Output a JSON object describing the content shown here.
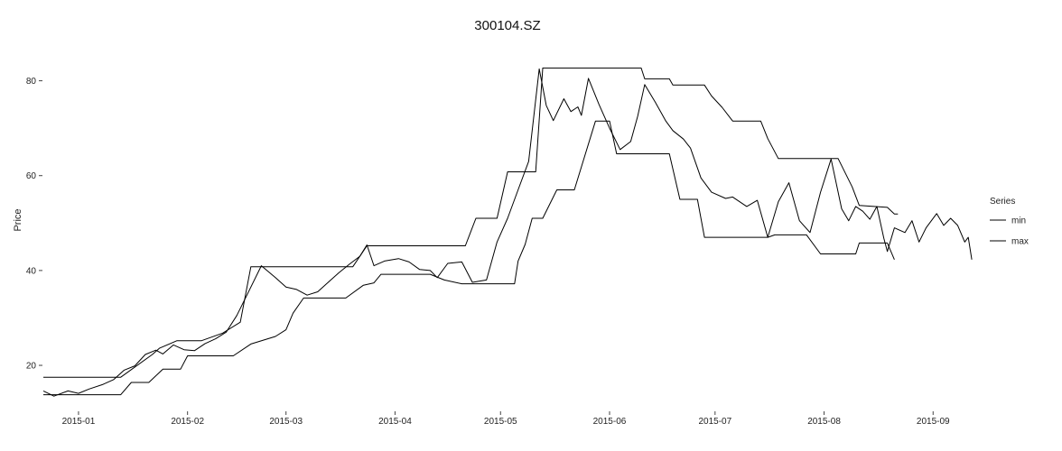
{
  "chart_data": {
    "type": "line",
    "title": "300104.SZ",
    "xlabel": "",
    "ylabel": "Price",
    "xlim": [
      "2014-12-22",
      "2015-09-13"
    ],
    "ylim": [
      10.5,
      86
    ],
    "x_tick_labels": [
      "2015-01",
      "2015-02",
      "2015-03",
      "2015-04",
      "2015-05",
      "2015-06",
      "2015-07",
      "2015-08",
      "2015-09"
    ],
    "y_ticks": [
      20,
      40,
      60,
      80
    ],
    "grid": false,
    "legend": {
      "title": "Series",
      "position": "right"
    },
    "series": [
      {
        "name": "min",
        "color": "#000000",
        "points": [
          [
            "2014-12-22",
            17.5
          ],
          [
            "2015-01-13",
            17.5
          ],
          [
            "2015-01-22",
            22.3
          ],
          [
            "2015-01-24",
            23.6
          ],
          [
            "2015-01-29",
            25.2
          ],
          [
            "2015-02-05",
            25.2
          ],
          [
            "2015-02-11",
            26.8
          ],
          [
            "2015-02-16",
            29.1
          ],
          [
            "2015-02-19",
            40.8
          ],
          [
            "2015-03-20",
            40.8
          ],
          [
            "2015-03-24",
            45.2
          ],
          [
            "2015-04-21",
            45.2
          ],
          [
            "2015-04-24",
            51.0
          ],
          [
            "2015-04-30",
            51.0
          ],
          [
            "2015-05-03",
            60.8
          ],
          [
            "2015-05-11",
            60.8
          ],
          [
            "2015-05-13",
            82.7
          ],
          [
            "2015-06-10",
            82.7
          ],
          [
            "2015-06-11",
            80.4
          ],
          [
            "2015-06-18",
            80.4
          ],
          [
            "2015-06-19",
            79.1
          ],
          [
            "2015-06-28",
            79.1
          ],
          [
            "2015-06-30",
            76.8
          ],
          [
            "2015-07-03",
            74.4
          ],
          [
            "2015-07-06",
            71.5
          ],
          [
            "2015-07-14",
            71.5
          ],
          [
            "2015-07-16",
            67.8
          ],
          [
            "2015-07-19",
            63.6
          ],
          [
            "2015-08-05",
            63.6
          ],
          [
            "2015-08-09",
            57.6
          ],
          [
            "2015-08-11",
            53.7
          ],
          [
            "2015-08-19",
            53.3
          ],
          [
            "2015-08-21",
            51.9
          ],
          [
            "2015-08-22",
            51.9
          ]
        ]
      },
      {
        "name": "max",
        "color": "#000000",
        "points": [
          [
            "2014-12-22",
            13.8
          ],
          [
            "2015-01-13",
            13.8
          ],
          [
            "2015-01-16",
            16.4
          ],
          [
            "2015-01-21",
            16.4
          ],
          [
            "2015-01-25",
            19.2
          ],
          [
            "2015-01-30",
            19.2
          ],
          [
            "2015-02-01",
            22.0
          ],
          [
            "2015-02-14",
            22.0
          ],
          [
            "2015-02-19",
            24.5
          ],
          [
            "2015-02-26",
            26.1
          ],
          [
            "2015-03-01",
            27.5
          ],
          [
            "2015-03-03",
            31.0
          ],
          [
            "2015-03-06",
            34.2
          ],
          [
            "2015-03-18",
            34.2
          ],
          [
            "2015-03-23",
            36.9
          ],
          [
            "2015-03-26",
            37.4
          ],
          [
            "2015-03-28",
            39.2
          ],
          [
            "2015-04-11",
            39.2
          ],
          [
            "2015-04-15",
            38.0
          ],
          [
            "2015-04-20",
            37.2
          ],
          [
            "2015-05-05",
            37.2
          ],
          [
            "2015-05-06",
            42.0
          ],
          [
            "2015-05-08",
            45.5
          ],
          [
            "2015-05-10",
            51.0
          ],
          [
            "2015-05-13",
            51.0
          ],
          [
            "2015-05-17",
            57.0
          ],
          [
            "2015-05-22",
            57.0
          ],
          [
            "2015-05-28",
            71.5
          ],
          [
            "2015-06-01",
            71.5
          ],
          [
            "2015-06-03",
            64.6
          ],
          [
            "2015-06-18",
            64.6
          ],
          [
            "2015-06-21",
            55.0
          ],
          [
            "2015-06-26",
            55.0
          ],
          [
            "2015-06-28",
            47.0
          ],
          [
            "2015-07-16",
            47.0
          ],
          [
            "2015-07-18",
            47.5
          ],
          [
            "2015-07-27",
            47.5
          ],
          [
            "2015-07-31",
            43.5
          ],
          [
            "2015-08-10",
            43.5
          ],
          [
            "2015-08-11",
            45.8
          ],
          [
            "2015-08-19",
            45.8
          ],
          [
            "2015-08-21",
            42.3
          ]
        ]
      },
      {
        "name": "",
        "color": "#000000",
        "points": [
          [
            "2014-12-22",
            14.6
          ],
          [
            "2014-12-25",
            13.5
          ],
          [
            "2014-12-29",
            14.6
          ],
          [
            "2015-01-01",
            14.1
          ],
          [
            "2015-01-04",
            15.0
          ],
          [
            "2015-01-08",
            16.0
          ],
          [
            "2015-01-11",
            17.0
          ],
          [
            "2015-01-14",
            19.0
          ],
          [
            "2015-01-17",
            19.9
          ],
          [
            "2015-01-20",
            22.3
          ],
          [
            "2015-01-23",
            23.2
          ],
          [
            "2015-01-25",
            22.4
          ],
          [
            "2015-01-28",
            24.3
          ],
          [
            "2015-01-31",
            23.3
          ],
          [
            "2015-02-03",
            23.1
          ],
          [
            "2015-02-06",
            24.6
          ],
          [
            "2015-02-09",
            25.6
          ],
          [
            "2015-02-12",
            27.0
          ],
          [
            "2015-02-15",
            30.5
          ],
          [
            "2015-02-18",
            35.0
          ],
          [
            "2015-02-22",
            41.0
          ],
          [
            "2015-02-26",
            38.5
          ],
          [
            "2015-03-01",
            36.5
          ],
          [
            "2015-03-04",
            36.0
          ],
          [
            "2015-03-07",
            34.8
          ],
          [
            "2015-03-10",
            35.5
          ],
          [
            "2015-03-13",
            37.5
          ],
          [
            "2015-03-16",
            39.5
          ],
          [
            "2015-03-19",
            41.3
          ],
          [
            "2015-03-22",
            43.0
          ],
          [
            "2015-03-24",
            45.4
          ],
          [
            "2015-03-26",
            41.0
          ],
          [
            "2015-03-29",
            42.0
          ],
          [
            "2015-04-02",
            42.5
          ],
          [
            "2015-04-05",
            41.8
          ],
          [
            "2015-04-08",
            40.2
          ],
          [
            "2015-04-11",
            40.0
          ],
          [
            "2015-04-13",
            38.5
          ],
          [
            "2015-04-16",
            41.5
          ],
          [
            "2015-04-20",
            41.8
          ],
          [
            "2015-04-23",
            37.5
          ],
          [
            "2015-04-27",
            38.0
          ],
          [
            "2015-04-30",
            46.0
          ],
          [
            "2015-05-03",
            51.0
          ],
          [
            "2015-05-06",
            57.0
          ],
          [
            "2015-05-09",
            63.0
          ],
          [
            "2015-05-12",
            82.5
          ],
          [
            "2015-05-14",
            74.8
          ],
          [
            "2015-05-16",
            71.6
          ],
          [
            "2015-05-19",
            76.2
          ],
          [
            "2015-05-21",
            73.5
          ],
          [
            "2015-05-23",
            74.5
          ],
          [
            "2015-05-24",
            72.7
          ],
          [
            "2015-05-26",
            80.5
          ],
          [
            "2015-05-29",
            75.0
          ],
          [
            "2015-06-01",
            70.0
          ],
          [
            "2015-06-04",
            65.5
          ],
          [
            "2015-06-07",
            67.2
          ],
          [
            "2015-06-09",
            72.5
          ],
          [
            "2015-06-11",
            79.2
          ],
          [
            "2015-06-14",
            75.5
          ],
          [
            "2015-06-17",
            71.5
          ],
          [
            "2015-06-19",
            69.5
          ],
          [
            "2015-06-22",
            67.7
          ],
          [
            "2015-06-24",
            65.8
          ],
          [
            "2015-06-27",
            59.5
          ],
          [
            "2015-06-30",
            56.5
          ],
          [
            "2015-07-04",
            55.2
          ],
          [
            "2015-07-06",
            55.5
          ],
          [
            "2015-07-10",
            53.5
          ],
          [
            "2015-07-13",
            54.8
          ],
          [
            "2015-07-16",
            47.0
          ],
          [
            "2015-07-19",
            54.5
          ],
          [
            "2015-07-22",
            58.5
          ],
          [
            "2015-07-25",
            50.5
          ],
          [
            "2015-07-28",
            48.0
          ],
          [
            "2015-07-31",
            56.5
          ],
          [
            "2015-08-03",
            63.5
          ],
          [
            "2015-08-06",
            53.0
          ],
          [
            "2015-08-08",
            50.5
          ],
          [
            "2015-08-10",
            53.5
          ],
          [
            "2015-08-12",
            52.5
          ],
          [
            "2015-08-14",
            50.8
          ],
          [
            "2015-08-16",
            53.5
          ],
          [
            "2015-08-18",
            46.8
          ],
          [
            "2015-08-19",
            44.0
          ],
          [
            "2015-08-21",
            49.0
          ],
          [
            "2015-08-24",
            48.0
          ],
          [
            "2015-08-26",
            50.5
          ],
          [
            "2015-08-28",
            46.0
          ],
          [
            "2015-08-30",
            49.0
          ],
          [
            "2015-09-02",
            52.0
          ],
          [
            "2015-09-04",
            49.5
          ],
          [
            "2015-09-06",
            51.0
          ],
          [
            "2015-09-08",
            49.5
          ],
          [
            "2015-09-10",
            46.0
          ],
          [
            "2015-09-11",
            47.0
          ],
          [
            "2015-09-12",
            42.3
          ]
        ]
      }
    ]
  }
}
